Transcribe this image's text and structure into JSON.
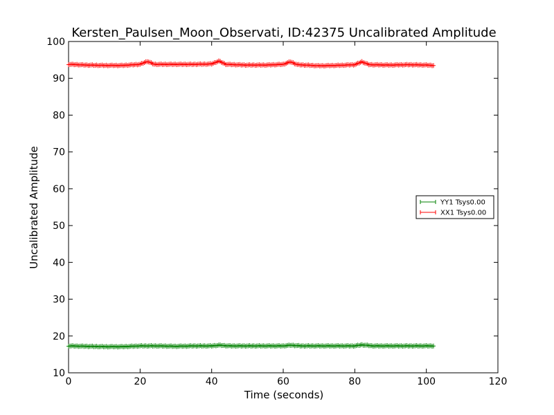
{
  "chart_data": {
    "type": "line",
    "title": "Kersten_Paulsen_Moon_Observati, ID:42375 Uncalibrated Amplitude",
    "xlabel": "Time (seconds)",
    "ylabel": "Uncalibrated Amplitude",
    "xlim": [
      0,
      120
    ],
    "ylim": [
      10,
      100
    ],
    "xticks": [
      0,
      20,
      40,
      60,
      80,
      100,
      120
    ],
    "yticks": [
      10,
      20,
      30,
      40,
      50,
      60,
      70,
      80,
      90,
      100
    ],
    "grid": false,
    "legend_position": "center-right",
    "x_range": [
      0,
      102
    ],
    "series": [
      {
        "name": "YY1 Tsys0.00",
        "color": "#008000",
        "marker": "+",
        "x": [
          0,
          5,
          10,
          15,
          20,
          25,
          30,
          35,
          40,
          42,
          45,
          50,
          55,
          60,
          62,
          65,
          70,
          75,
          80,
          82,
          85,
          90,
          95,
          100,
          102
        ],
        "values": [
          17.3,
          17.2,
          17.1,
          17.1,
          17.3,
          17.3,
          17.2,
          17.3,
          17.3,
          17.5,
          17.3,
          17.3,
          17.3,
          17.3,
          17.5,
          17.3,
          17.3,
          17.3,
          17.3,
          17.6,
          17.3,
          17.3,
          17.3,
          17.3,
          17.3
        ]
      },
      {
        "name": "XX1 Tsys0.00",
        "color": "#ff0000",
        "marker": "+",
        "x": [
          0,
          5,
          10,
          15,
          20,
          22,
          24,
          30,
          35,
          40,
          42,
          44,
          50,
          55,
          60,
          62,
          64,
          70,
          75,
          80,
          82,
          84,
          90,
          95,
          100,
          102
        ],
        "values": [
          93.8,
          93.6,
          93.5,
          93.5,
          93.8,
          94.6,
          93.8,
          93.8,
          93.8,
          93.9,
          94.7,
          93.8,
          93.6,
          93.6,
          93.8,
          94.5,
          93.7,
          93.4,
          93.5,
          93.7,
          94.5,
          93.7,
          93.6,
          93.7,
          93.6,
          93.5
        ]
      }
    ]
  }
}
